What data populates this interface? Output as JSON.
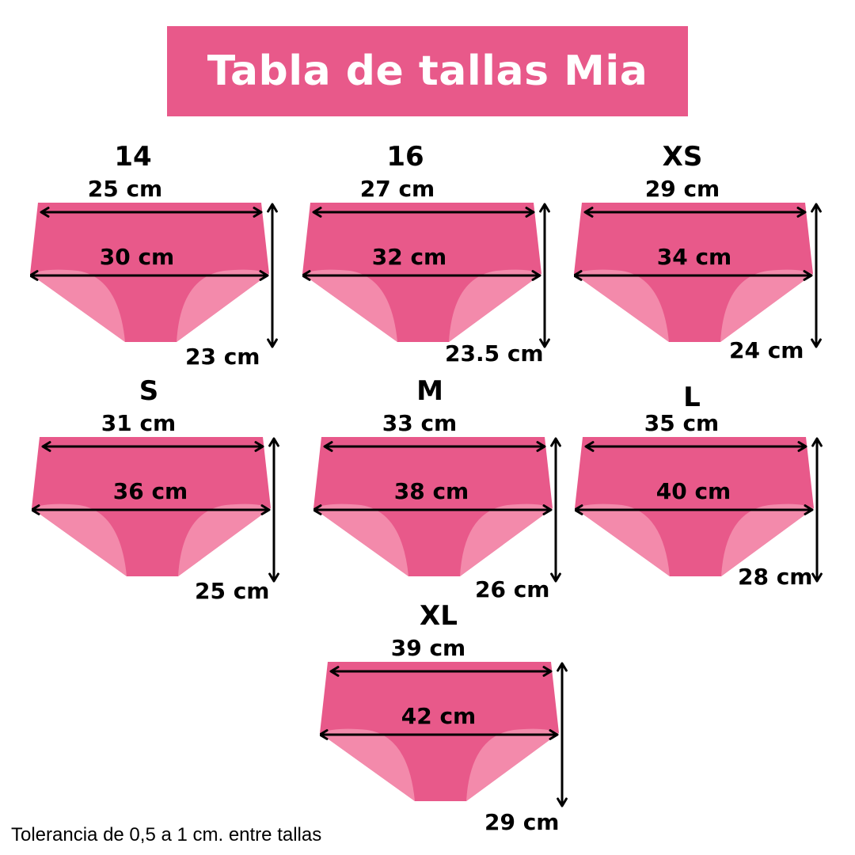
{
  "header": {
    "title": "Tabla de tallas Mia"
  },
  "colors": {
    "banner": "#e8598a",
    "body": "#e8598a",
    "leg": "#f38aab",
    "line": "#000000"
  },
  "sizes": [
    {
      "name": "14",
      "top_width": "25 cm",
      "mid_width": "30 cm",
      "height": "23 cm"
    },
    {
      "name": "16",
      "top_width": "27 cm",
      "mid_width": "32 cm",
      "height": "23.5 cm"
    },
    {
      "name": "XS",
      "top_width": "29 cm",
      "mid_width": "34 cm",
      "height": "24 cm"
    },
    {
      "name": "S",
      "top_width": "31 cm",
      "mid_width": "36 cm",
      "height": "25 cm"
    },
    {
      "name": "M",
      "top_width": "33 cm",
      "mid_width": "38 cm",
      "height": "26 cm"
    },
    {
      "name": "L",
      "top_width": "35 cm",
      "mid_width": "40 cm",
      "height": "28 cm"
    },
    {
      "name": "XL",
      "top_width": "39 cm",
      "mid_width": "42 cm",
      "height": "29 cm"
    }
  ],
  "footer": {
    "note": "Tolerancia de 0,5 a 1 cm. entre tallas"
  }
}
